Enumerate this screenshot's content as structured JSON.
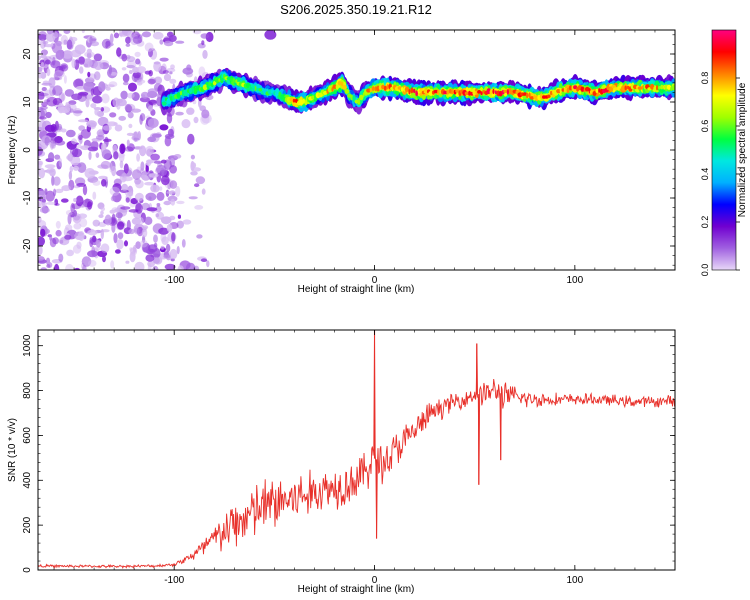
{
  "chart_data": [
    {
      "type": "heatmap",
      "title": "S206.2025.350.19.21.R12",
      "xlabel": "Height of straight line (km)",
      "ylabel": "Frequency (Hz)",
      "xlim": [
        -168,
        150
      ],
      "ylim": [
        -25,
        25
      ],
      "x_ticks": [
        -100,
        0,
        100
      ],
      "y_ticks": [
        -20,
        -10,
        0,
        10,
        20
      ],
      "colorbar": {
        "label": "Normalized spectral amplitude",
        "range": [
          0,
          1
        ],
        "ticks": [
          "0.0",
          "0.2",
          "0.4",
          "0.6",
          "0.8"
        ],
        "tick_values": [
          0.0,
          0.2,
          0.4,
          0.6,
          0.8
        ],
        "colors": [
          "#e8d8f8",
          "#a060e0",
          "#7000d0",
          "#0000ff",
          "#00b0ff",
          "#00e8e0",
          "#00ff40",
          "#a0ff00",
          "#ffff00",
          "#ff8000",
          "#ff0000",
          "#ff0080"
        ]
      },
      "ridge": {
        "name": "dominant frequency",
        "x": [
          -105,
          -95,
          -85,
          -75,
          -68,
          -60,
          -55,
          -50,
          -45,
          -40,
          -35,
          -30,
          -25,
          -20,
          -16,
          -12,
          -8,
          -4,
          0,
          10,
          20,
          40,
          60,
          70,
          80,
          85,
          90,
          100,
          110,
          120,
          130,
          140,
          150
        ],
        "freq_hz": [
          10,
          12,
          13,
          15,
          14,
          13,
          12,
          12,
          11,
          10,
          10,
          11,
          12,
          13,
          14,
          11,
          10,
          12,
          13,
          13,
          12,
          12,
          12,
          12,
          11,
          11,
          12,
          13,
          12,
          13,
          13,
          13,
          13
        ],
        "amplitude": [
          0.5,
          0.55,
          0.6,
          0.6,
          0.65,
          0.55,
          0.5,
          0.5,
          0.6,
          0.8,
          0.75,
          0.6,
          0.7,
          0.75,
          0.85,
          0.55,
          0.6,
          0.75,
          0.85,
          0.8,
          0.85,
          0.85,
          0.85,
          0.85,
          0.8,
          0.8,
          0.8,
          0.85,
          0.85,
          0.85,
          0.8,
          0.75,
          0.7
        ]
      },
      "noise_region_x": [
        -168,
        -100
      ]
    },
    {
      "type": "line",
      "xlabel": "Height of straight line (km)",
      "ylabel": "SNR (10 * v/v)",
      "xlim": [
        -168,
        150
      ],
      "ylim": [
        0,
        1070
      ],
      "x_ticks": [
        -100,
        0,
        100
      ],
      "y_ticks": [
        0,
        200,
        400,
        600,
        800,
        1000
      ],
      "series": [
        {
          "name": "SNR",
          "color": "#e8302a",
          "x": [
            -168,
            -150,
            -130,
            -110,
            -100,
            -95,
            -90,
            -85,
            -80,
            -75,
            -70,
            -65,
            -60,
            -55,
            -50,
            -45,
            -40,
            -35,
            -30,
            -25,
            -20,
            -15,
            -10,
            -5,
            -1,
            0,
            1,
            5,
            10,
            15,
            20,
            25,
            30,
            40,
            50,
            51,
            52,
            55,
            60,
            63,
            65,
            70,
            80,
            90,
            100,
            110,
            120,
            130,
            140,
            150
          ],
          "values": [
            18,
            17,
            16,
            18,
            25,
            45,
            70,
            100,
            140,
            170,
            200,
            230,
            260,
            280,
            300,
            310,
            320,
            330,
            345,
            360,
            370,
            385,
            400,
            430,
            500,
            1070,
            140,
            480,
            530,
            570,
            620,
            670,
            710,
            750,
            780,
            1010,
            380,
            790,
            800,
            490,
            780,
            770,
            760,
            760,
            760,
            760,
            755,
            750,
            750,
            755
          ],
          "amplitude": [
            6,
            6,
            6,
            6,
            8,
            15,
            30,
            50,
            70,
            90,
            110,
            120,
            130,
            130,
            130,
            130,
            120,
            110,
            100,
            100,
            100,
            100,
            100,
            100,
            100,
            0,
            0,
            100,
            90,
            80,
            70,
            60,
            50,
            40,
            40,
            0,
            0,
            60,
            60,
            0,
            60,
            50,
            35,
            30,
            25,
            25,
            25,
            25,
            25,
            25
          ]
        }
      ]
    }
  ]
}
